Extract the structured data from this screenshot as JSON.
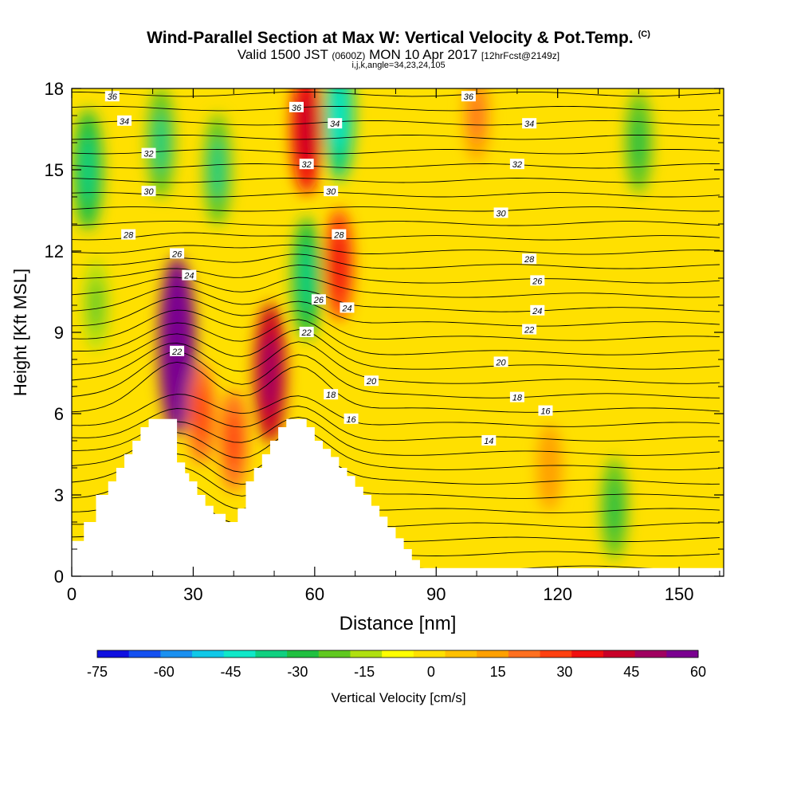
{
  "header": {
    "title": "Wind-Parallel Section at Max W: Vertical Velocity & Pot.Temp.",
    "copyright": "(C)",
    "valid_prefix": "Valid 1500 JST",
    "valid_utc": "(0600Z)",
    "valid_date": "MON 10 Apr 2017",
    "forecast": "[12hrFcst@2149z]",
    "indices": "i,j,k,angle=34,23,24,105"
  },
  "chart_data": {
    "type": "heatmap",
    "xlabel": "Distance [nm]",
    "ylabel": "Height [Kft MSL]",
    "xlim": [
      0,
      161
    ],
    "ylim": [
      0,
      18
    ],
    "x_ticks": [
      0,
      30,
      60,
      90,
      120,
      150
    ],
    "y_ticks": [
      0,
      3,
      6,
      9,
      12,
      15,
      18
    ],
    "colorbar": {
      "label": "Vertical Velocity [cm/s]",
      "ticks": [
        -75,
        -60,
        -45,
        -30,
        -15,
        0,
        15,
        30,
        45,
        60
      ],
      "range": [
        -75,
        60
      ],
      "colors": [
        "#1010e0",
        "#1450f0",
        "#1a90f0",
        "#10c8e8",
        "#10e8c8",
        "#10d080",
        "#20c040",
        "#60c820",
        "#b0e010",
        "#ffff00",
        "#ffe000",
        "#ffc000",
        "#ffa000",
        "#ff7020",
        "#ff4010",
        "#f01010",
        "#c80028",
        "#a00060",
        "#7a0090"
      ]
    },
    "contours": {
      "field": "Potential Temperature",
      "levels_labeled": [
        14,
        16,
        18,
        20,
        22,
        24,
        26,
        28,
        30,
        32,
        34,
        36
      ]
    },
    "velocity_features": [
      {
        "x": 26,
        "z": 8.5,
        "w": 60
      },
      {
        "x": 49,
        "z": 7.5,
        "w": 40
      },
      {
        "x": 58,
        "z": 16.5,
        "w": 35
      },
      {
        "x": 66,
        "z": 11.5,
        "w": 25
      },
      {
        "x": 66,
        "z": 17,
        "w": -35
      },
      {
        "x": 58,
        "z": 11,
        "w": -30
      },
      {
        "x": 4,
        "z": 15,
        "w": -30
      },
      {
        "x": 6,
        "z": 10,
        "w": -15
      },
      {
        "x": 22,
        "z": 16,
        "w": -25
      },
      {
        "x": 36,
        "z": 15,
        "w": -25
      },
      {
        "x": 100,
        "z": 17,
        "w": 15
      },
      {
        "x": 140,
        "z": 16,
        "w": -20
      },
      {
        "x": 134,
        "z": 2.5,
        "w": -20
      },
      {
        "x": 118,
        "z": 4,
        "w": 12
      },
      {
        "x": 40,
        "z": 5,
        "w": 20
      },
      {
        "x": 32,
        "z": 6,
        "w": 20
      }
    ],
    "terrain": [
      [
        0,
        1.3
      ],
      [
        3,
        1.3
      ],
      [
        3,
        2
      ],
      [
        6,
        2
      ],
      [
        6,
        3
      ],
      [
        9,
        3
      ],
      [
        9,
        3.5
      ],
      [
        11,
        3.5
      ],
      [
        11,
        4
      ],
      [
        13,
        4
      ],
      [
        13,
        4.5
      ],
      [
        15,
        4.5
      ],
      [
        15,
        5
      ],
      [
        17,
        5
      ],
      [
        17,
        5.5
      ],
      [
        19,
        5.5
      ],
      [
        19,
        5.8
      ],
      [
        23,
        5.8
      ],
      [
        23,
        5.8
      ],
      [
        26,
        5.8
      ],
      [
        26,
        4.2
      ],
      [
        28,
        4.2
      ],
      [
        28,
        3.8
      ],
      [
        29,
        3.8
      ],
      [
        29,
        3.5
      ],
      [
        31,
        3.5
      ],
      [
        31,
        3
      ],
      [
        33,
        3
      ],
      [
        33,
        2.6
      ],
      [
        35,
        2.6
      ],
      [
        35,
        2.3
      ],
      [
        38,
        2.3
      ],
      [
        38,
        2
      ],
      [
        41,
        2
      ],
      [
        41,
        2.5
      ],
      [
        43,
        2.5
      ],
      [
        43,
        3.5
      ],
      [
        45,
        3.5
      ],
      [
        45,
        4
      ],
      [
        47,
        4
      ],
      [
        47,
        4.5
      ],
      [
        49,
        4.5
      ],
      [
        49,
        5
      ],
      [
        51,
        5
      ],
      [
        51,
        5.5
      ],
      [
        53,
        5.5
      ],
      [
        53,
        5.8
      ],
      [
        58,
        5.8
      ],
      [
        58,
        5.5
      ],
      [
        60,
        5.5
      ],
      [
        60,
        5
      ],
      [
        62,
        5
      ],
      [
        62,
        4.7
      ],
      [
        64,
        4.7
      ],
      [
        64,
        4.4
      ],
      [
        66,
        4.4
      ],
      [
        66,
        4
      ],
      [
        68,
        4
      ],
      [
        68,
        3.7
      ],
      [
        70,
        3.7
      ],
      [
        70,
        3.3
      ],
      [
        72,
        3.3
      ],
      [
        72,
        3
      ],
      [
        74,
        3
      ],
      [
        74,
        2.6
      ],
      [
        76,
        2.6
      ],
      [
        76,
        2.2
      ],
      [
        78,
        2.2
      ],
      [
        78,
        1.8
      ],
      [
        80,
        1.8
      ],
      [
        80,
        1.4
      ],
      [
        82,
        1.4
      ],
      [
        82,
        1
      ],
      [
        84,
        1
      ],
      [
        84,
        0.6
      ],
      [
        86,
        0.6
      ],
      [
        86,
        0.3
      ],
      [
        161,
        0.3
      ],
      [
        161,
        0
      ],
      [
        0,
        0
      ]
    ],
    "contour_labels": [
      {
        "x": 10,
        "z": 17.7,
        "text": "36"
      },
      {
        "x": 55.5,
        "z": 17.3,
        "text": "36"
      },
      {
        "x": 98,
        "z": 17.7,
        "text": "36"
      },
      {
        "x": 13,
        "z": 16.8,
        "text": "34"
      },
      {
        "x": 65,
        "z": 16.7,
        "text": "34"
      },
      {
        "x": 113,
        "z": 16.7,
        "text": "34"
      },
      {
        "x": 19,
        "z": 15.6,
        "text": "32"
      },
      {
        "x": 58,
        "z": 15.2,
        "text": "32"
      },
      {
        "x": 110,
        "z": 15.2,
        "text": "32"
      },
      {
        "x": 19,
        "z": 14.2,
        "text": "30"
      },
      {
        "x": 64,
        "z": 14.2,
        "text": "30"
      },
      {
        "x": 106,
        "z": 13.4,
        "text": "30"
      },
      {
        "x": 14,
        "z": 12.6,
        "text": "28"
      },
      {
        "x": 66,
        "z": 12.6,
        "text": "28"
      },
      {
        "x": 113,
        "z": 11.7,
        "text": "28"
      },
      {
        "x": 26,
        "z": 11.9,
        "text": "26"
      },
      {
        "x": 61,
        "z": 10.2,
        "text": "26"
      },
      {
        "x": 115,
        "z": 10.9,
        "text": "26"
      },
      {
        "x": 29,
        "z": 11.1,
        "text": "24"
      },
      {
        "x": 68,
        "z": 9.9,
        "text": "24"
      },
      {
        "x": 115,
        "z": 9.8,
        "text": "24"
      },
      {
        "x": 26,
        "z": 8.3,
        "text": "22"
      },
      {
        "x": 58,
        "z": 9.0,
        "text": "22"
      },
      {
        "x": 113,
        "z": 9.1,
        "text": "22"
      },
      {
        "x": 106,
        "z": 7.9,
        "text": "20"
      },
      {
        "x": 74,
        "z": 7.2,
        "text": "20"
      },
      {
        "x": 64,
        "z": 6.7,
        "text": "18"
      },
      {
        "x": 110,
        "z": 6.6,
        "text": "18"
      },
      {
        "x": 69,
        "z": 5.8,
        "text": "16"
      },
      {
        "x": 117,
        "z": 6.1,
        "text": "16"
      },
      {
        "x": 103,
        "z": 5.0,
        "text": "14"
      }
    ]
  }
}
